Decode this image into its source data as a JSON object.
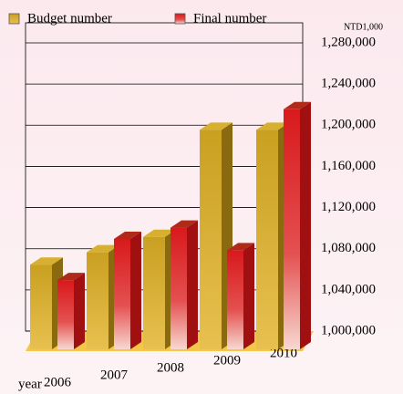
{
  "chart_data": {
    "type": "bar3d",
    "unit": "NTD1,000",
    "x_label": "year",
    "categories": [
      "2006",
      "2007",
      "2008",
      "2009",
      "2010"
    ],
    "series": [
      {
        "name": "Budget number",
        "color": "#c9a020",
        "values": [
          1084000,
          1096000,
          1111000,
          1215000,
          1215000
        ]
      },
      {
        "name": "Final number",
        "color": "#d8191c",
        "values": [
          1069000,
          1109000,
          1120000,
          1098000,
          1235000
        ]
      }
    ],
    "ylim": [
      1000000,
      1280000
    ],
    "yticks": [
      {
        "value": 1000000,
        "label": "1,000,000"
      },
      {
        "value": 1040000,
        "label": "1,040,000"
      },
      {
        "value": 1080000,
        "label": "1,080,000"
      },
      {
        "value": 1120000,
        "label": "1,120,000"
      },
      {
        "value": 1160000,
        "label": "1,160,000"
      },
      {
        "value": 1200000,
        "label": "1,200,000"
      },
      {
        "value": 1240000,
        "label": "1,240,000"
      },
      {
        "value": 1280000,
        "label": "1,280,000"
      }
    ],
    "grid": true
  }
}
